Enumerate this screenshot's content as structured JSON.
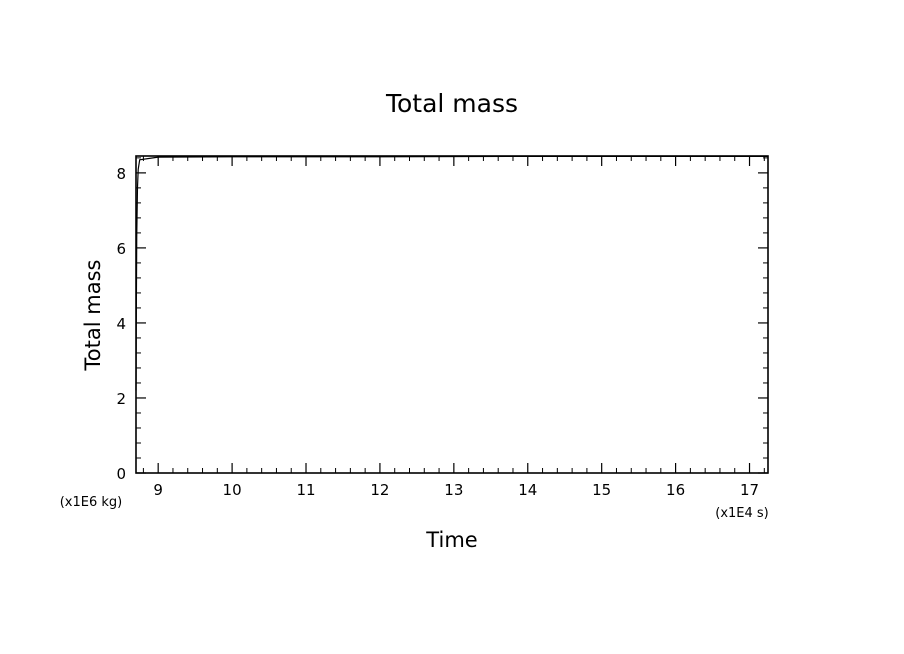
{
  "chart_data": {
    "type": "line",
    "title": "Total mass",
    "xlabel": "Time",
    "ylabel": "Total mass",
    "x_unit_label": "(x1E4 s)",
    "y_unit_label": "(x1E6 kg)",
    "xlim": [
      8.7,
      17.25
    ],
    "ylim": [
      0,
      8.45
    ],
    "x_ticks": [
      9,
      10,
      11,
      12,
      13,
      14,
      15,
      16,
      17
    ],
    "y_ticks": [
      0,
      2,
      4,
      6,
      8
    ],
    "grid": false,
    "series": [
      {
        "color": "#000000",
        "x": [
          8.7,
          8.705,
          8.71,
          8.72,
          8.73,
          8.75,
          9.0,
          10.0,
          12.0,
          14.0,
          16.0,
          17.25
        ],
        "y": [
          2.2,
          4.5,
          6.3,
          7.6,
          8.1,
          8.35,
          8.42,
          8.43,
          8.43,
          8.44,
          8.44,
          8.44
        ]
      }
    ]
  }
}
